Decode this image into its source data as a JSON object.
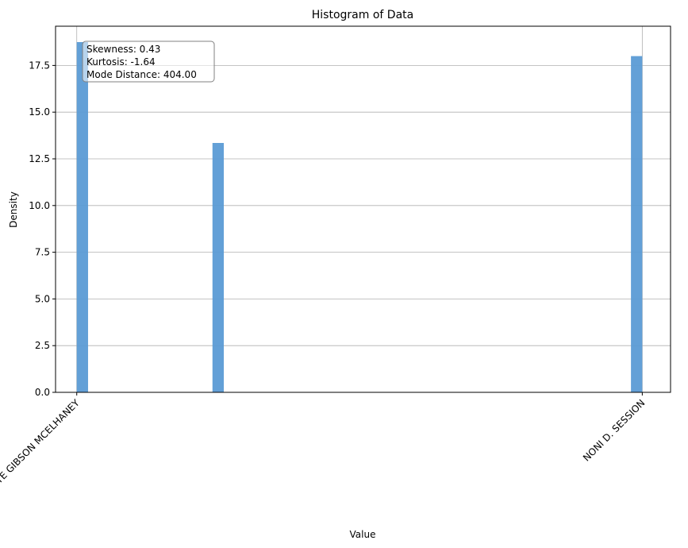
{
  "chart_data": {
    "type": "bar",
    "title": "Histogram of Data",
    "xlabel": "Value",
    "ylabel": "Density",
    "ylim": [
      0,
      19.6
    ],
    "xlim": [
      -0.15,
      4.2
    ],
    "yticks": [
      "0.0",
      "2.5",
      "5.0",
      "7.5",
      "10.0",
      "12.5",
      "15.0",
      "17.5"
    ],
    "ytick_values": [
      0,
      2.5,
      5,
      7.5,
      10,
      12.5,
      15,
      17.5
    ],
    "xticks": [
      {
        "value": 0,
        "label": "LYNETTE GIBSON MCELHANEY"
      },
      {
        "value": 4,
        "label": "NONI D. SESSION"
      }
    ],
    "bin_width": 0.08,
    "bars": [
      {
        "x": 0.04,
        "value": 18.75
      },
      {
        "x": 1.0,
        "value": 13.35
      },
      {
        "x": 3.96,
        "value": 18.0
      }
    ],
    "bar_color": "#5b9bd5",
    "grid": "y-and-x-ticks",
    "stats_box": {
      "lines": [
        "Skewness: 0.43",
        "Kurtosis: -1.64",
        "Mode Distance: 404.00"
      ]
    }
  }
}
